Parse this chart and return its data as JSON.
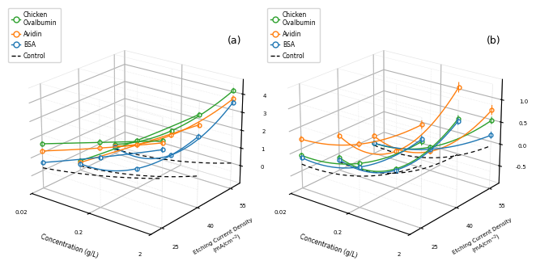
{
  "colors": {
    "chicken": "#2ca02c",
    "avidin": "#ff7f0e",
    "bsa": "#1f77b4",
    "control": "#000000"
  },
  "panel_a": {
    "chicken": {
      "25": {
        "y": [
          1.5,
          2.55,
          3.6
        ],
        "yerr": [
          0.12,
          0.15,
          0.12
        ]
      },
      "40": {
        "y": [
          -0.45,
          1.7,
          4.05
        ],
        "yerr": [
          0.12,
          0.12,
          0.1
        ]
      },
      "55": {
        "y": [
          -0.45,
          1.3,
          4.45
        ],
        "yerr": [
          0.12,
          0.1,
          0.12
        ]
      }
    },
    "avidin": {
      "25": {
        "y": [
          1.1,
          2.25,
          3.5
        ],
        "yerr": [
          0.1,
          0.12,
          0.1
        ]
      },
      "40": {
        "y": [
          -0.55,
          1.45,
          3.5
        ],
        "yerr": [
          0.1,
          0.1,
          0.12
        ]
      },
      "55": {
        "y": [
          -0.55,
          1.05,
          4.0
        ],
        "yerr": [
          0.1,
          0.12,
          0.15
        ]
      }
    },
    "bsa": {
      "25": {
        "y": [
          0.45,
          1.75,
          3.15
        ],
        "yerr": [
          0.1,
          0.1,
          0.12
        ]
      },
      "40": {
        "y": [
          -0.62,
          0.12,
          2.9
        ],
        "yerr": [
          0.1,
          0.1,
          0.1
        ]
      },
      "55": {
        "y": [
          -0.62,
          -0.1,
          3.8
        ],
        "yerr": [
          0.1,
          0.1,
          0.12
        ]
      }
    },
    "control": {
      "25": {
        "y": [
          0.15,
          0.75,
          1.65
        ]
      },
      "40": {
        "y": [
          -0.75,
          -0.25,
          0.75
        ]
      },
      "55": {
        "y": [
          -0.75,
          -0.4,
          0.45
        ]
      }
    },
    "ylim": [
      -1.0,
      4.8
    ],
    "yticks": [
      0,
      1,
      2,
      3,
      4
    ]
  },
  "panel_b": {
    "chicken": {
      "25": {
        "y": [
          -0.15,
          0.08,
          0.95
        ],
        "yerr": [
          0.05,
          0.05,
          0.07
        ]
      },
      "40": {
        "y": [
          -0.6,
          -0.45,
          1.05
        ],
        "yerr": [
          0.05,
          0.06,
          0.07
        ]
      },
      "55": {
        "y": [
          -0.65,
          -0.35,
          0.65
        ],
        "yerr": [
          0.05,
          0.05,
          0.07
        ]
      }
    },
    "avidin": {
      "25": {
        "y": [
          0.22,
          0.5,
          1.3
        ],
        "yerr": [
          0.06,
          0.06,
          0.08
        ]
      },
      "40": {
        "y": [
          -0.08,
          -0.05,
          1.72
        ],
        "yerr": [
          0.06,
          0.06,
          0.1
        ]
      },
      "55": {
        "y": [
          -0.48,
          -0.45,
          0.88
        ],
        "yerr": [
          0.06,
          0.06,
          0.1
        ]
      }
    },
    "bsa": {
      "25": {
        "y": [
          -0.2,
          0.0,
          1.0
        ],
        "yerr": [
          0.05,
          0.05,
          0.07
        ]
      },
      "40": {
        "y": [
          -0.65,
          -0.48,
          1.0
        ],
        "yerr": [
          0.05,
          0.05,
          0.07
        ]
      },
      "55": {
        "y": [
          -0.65,
          -0.4,
          0.32
        ],
        "yerr": [
          0.05,
          0.05,
          0.07
        ]
      }
    },
    "control": {
      "25": {
        "y": [
          -0.35,
          -0.2,
          0.45
        ]
      },
      "40": {
        "y": [
          -0.7,
          -0.55,
          0.28
        ]
      },
      "55": {
        "y": [
          -0.7,
          -0.6,
          0.08
        ]
      }
    },
    "ylim": [
      -0.9,
      1.45
    ],
    "yticks": [
      -0.5,
      0.0,
      0.5,
      1.0
    ]
  }
}
